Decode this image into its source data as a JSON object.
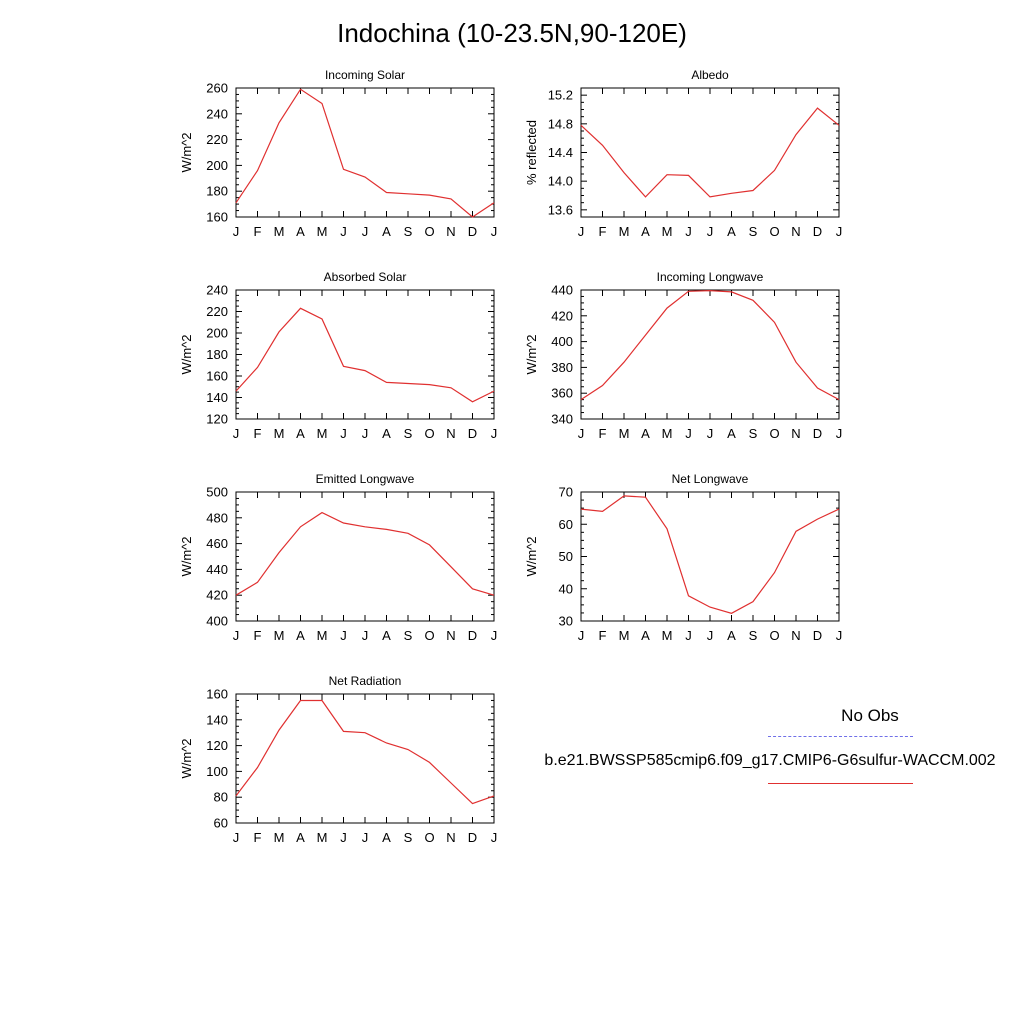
{
  "title": "Indochina (10-23.5N,90-120E)",
  "months": [
    "J",
    "F",
    "M",
    "A",
    "M",
    "J",
    "J",
    "A",
    "S",
    "O",
    "N",
    "D",
    "J"
  ],
  "legend": {
    "obs_label": "No Obs",
    "obs_color": "#6f6fe8",
    "case_label": "b.e21.BWSSP585cmip6.f09_g17.CMIP6-G6sulfur-WACCM.002",
    "case_color": "#e03030"
  },
  "chart_data": [
    {
      "type": "line",
      "title": "Incoming Solar",
      "ylabel": "W/m^2",
      "ylim": [
        160,
        260
      ],
      "yticks": [
        160,
        180,
        200,
        220,
        240,
        260
      ],
      "ytick_labels": [
        "160",
        "180",
        "200",
        "220",
        "240",
        "260"
      ],
      "x": [
        "J",
        "F",
        "M",
        "A",
        "M",
        "J",
        "J",
        "A",
        "S",
        "O",
        "N",
        "D",
        "J"
      ],
      "series": [
        {
          "values": [
            171,
            196,
            233,
            259,
            248,
            197,
            191,
            179,
            178,
            177,
            174,
            160,
            171
          ]
        }
      ]
    },
    {
      "type": "line",
      "title": "Albedo",
      "ylabel": "% reflected",
      "ylim": [
        13.5,
        15.3
      ],
      "yticks": [
        13.6,
        14.0,
        14.4,
        14.8,
        15.2
      ],
      "ytick_labels": [
        "13.6",
        "14.0",
        "14.4",
        "14.8",
        "15.2"
      ],
      "x": [
        "J",
        "F",
        "M",
        "A",
        "M",
        "J",
        "J",
        "A",
        "S",
        "O",
        "N",
        "D",
        "J"
      ],
      "series": [
        {
          "values": [
            14.78,
            14.5,
            14.12,
            13.78,
            14.09,
            14.08,
            13.78,
            13.83,
            13.87,
            14.15,
            14.65,
            15.02,
            14.78
          ]
        }
      ]
    },
    {
      "type": "line",
      "title": "Absorbed Solar",
      "ylabel": "W/m^2",
      "ylim": [
        120,
        240
      ],
      "yticks": [
        120,
        140,
        160,
        180,
        200,
        220,
        240
      ],
      "ytick_labels": [
        "120",
        "140",
        "160",
        "180",
        "200",
        "220",
        "240"
      ],
      "x": [
        "J",
        "F",
        "M",
        "A",
        "M",
        "J",
        "J",
        "A",
        "S",
        "O",
        "N",
        "D",
        "J"
      ],
      "series": [
        {
          "values": [
            146,
            168,
            201,
            223,
            213,
            169,
            165,
            154,
            153,
            152,
            149,
            136,
            146
          ]
        }
      ]
    },
    {
      "type": "line",
      "title": "Incoming Longwave",
      "ylabel": "W/m^2",
      "ylim": [
        340,
        440
      ],
      "yticks": [
        340,
        360,
        380,
        400,
        420,
        440
      ],
      "ytick_labels": [
        "340",
        "360",
        "380",
        "400",
        "420",
        "440"
      ],
      "x": [
        "J",
        "F",
        "M",
        "A",
        "M",
        "J",
        "J",
        "A",
        "S",
        "O",
        "N",
        "D",
        "J"
      ],
      "series": [
        {
          "values": [
            355,
            366,
            384,
            405,
            426,
            439,
            439.5,
            438.5,
            432,
            415,
            384,
            364,
            355
          ]
        }
      ]
    },
    {
      "type": "line",
      "title": "Emitted Longwave",
      "ylabel": "W/m^2",
      "ylim": [
        400,
        500
      ],
      "yticks": [
        400,
        420,
        440,
        460,
        480,
        500
      ],
      "ytick_labels": [
        "400",
        "420",
        "440",
        "460",
        "480",
        "500"
      ],
      "x": [
        "J",
        "F",
        "M",
        "A",
        "M",
        "J",
        "J",
        "A",
        "S",
        "O",
        "N",
        "D",
        "J"
      ],
      "series": [
        {
          "values": [
            420,
            430,
            453,
            473,
            484,
            476,
            473,
            471,
            468,
            459,
            442,
            425,
            420
          ]
        }
      ]
    },
    {
      "type": "line",
      "title": "Net Longwave",
      "ylabel": "W/m^2",
      "ylim": [
        30,
        70
      ],
      "yticks": [
        30,
        40,
        50,
        60,
        70
      ],
      "ytick_labels": [
        "30",
        "40",
        "50",
        "60",
        "70"
      ],
      "x": [
        "J",
        "F",
        "M",
        "A",
        "M",
        "J",
        "J",
        "A",
        "S",
        "O",
        "N",
        "D",
        "J"
      ],
      "series": [
        {
          "values": [
            64.7,
            64,
            68.8,
            68.4,
            58.6,
            37.8,
            34.3,
            32.4,
            36,
            45,
            57.8,
            61.6,
            64.7
          ]
        }
      ]
    },
    {
      "type": "line",
      "title": "Net Radiation",
      "ylabel": "W/m^2",
      "ylim": [
        60,
        160
      ],
      "yticks": [
        60,
        80,
        100,
        120,
        140,
        160
      ],
      "ytick_labels": [
        "60",
        "80",
        "100",
        "120",
        "140",
        "160"
      ],
      "x": [
        "J",
        "F",
        "M",
        "A",
        "M",
        "J",
        "J",
        "A",
        "S",
        "O",
        "N",
        "D",
        "J"
      ],
      "series": [
        {
          "values": [
            81,
            103,
            132,
            155,
            155,
            131,
            130,
            122,
            117,
            107,
            91,
            75,
            81
          ]
        }
      ]
    }
  ]
}
